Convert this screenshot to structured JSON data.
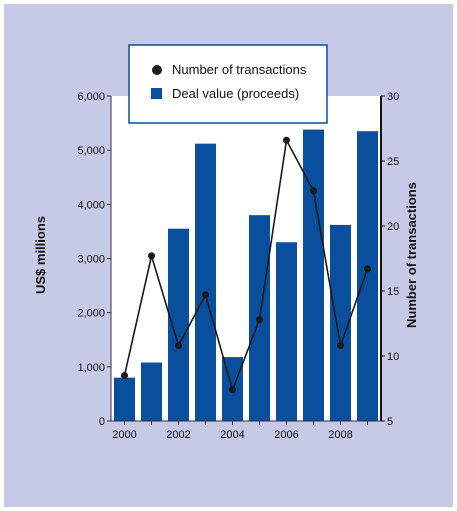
{
  "chart_data": {
    "type": "bar",
    "categories": [
      "2000",
      "2001",
      "2002",
      "2003",
      "2004",
      "2005",
      "2006",
      "2007",
      "2008",
      "2009"
    ],
    "x_tick_labels": [
      "2000",
      "2002",
      "2004",
      "2006",
      "2008"
    ],
    "series": [
      {
        "name": "Deal value (proceeds)",
        "type": "bar",
        "axis": "left",
        "values": [
          800,
          1080,
          3550,
          5120,
          1180,
          3800,
          3300,
          5380,
          3620,
          5350
        ],
        "color": "#0a4f9e"
      },
      {
        "name": "Number of transactions",
        "type": "line",
        "axis": "right",
        "values": [
          8.5,
          17.7,
          10.8,
          14.7,
          7.4,
          12.8,
          26.6,
          22.7,
          10.8,
          16.7
        ],
        "color": "#1a1a1a"
      }
    ],
    "ylabel": "US$ millions",
    "ylim": [
      0,
      6000
    ],
    "y_tick_labels": [
      "0",
      "1,000",
      "2,000",
      "3,000",
      "4,000",
      "5,000",
      "6,000"
    ],
    "y2label": "Number of transactions",
    "y2lim": [
      5,
      30
    ],
    "y2_tick_labels": [
      "5",
      "10",
      "15",
      "20",
      "25",
      "30"
    ],
    "legend_position": "top"
  }
}
